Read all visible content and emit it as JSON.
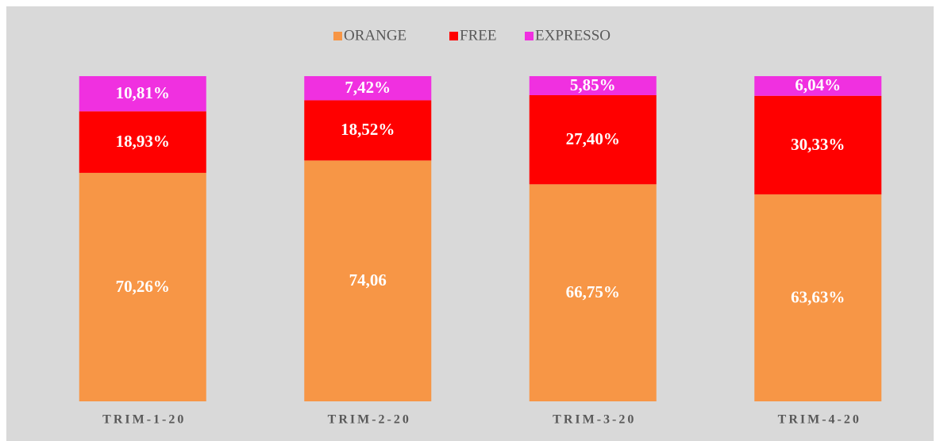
{
  "chart_data": {
    "type": "stacked_bar",
    "categories": [
      "TRIM-1-20",
      "TRIM-2-20",
      "TRIM-3-20",
      "TRIM-4-20"
    ],
    "series": [
      {
        "name": "ORANGE",
        "color": "#f79646",
        "values": [
          70.26,
          74.06,
          66.75,
          63.63
        ],
        "value_labels": [
          "70,26%",
          "74,06",
          "66,75%",
          "63,63%"
        ]
      },
      {
        "name": "FREE",
        "color": "#ff0000",
        "values": [
          18.93,
          18.52,
          27.4,
          30.33
        ],
        "value_labels": [
          "18,93%",
          "18,52%",
          "27,40%",
          "30,33%"
        ]
      },
      {
        "name": "EXPRESSO",
        "color": "#f030e0",
        "values": [
          10.81,
          7.42,
          5.85,
          6.04
        ],
        "value_labels": [
          "10,81%",
          "7,42%",
          "5,85%",
          "6,04%"
        ]
      }
    ],
    "ylim": [
      0,
      100
    ],
    "legend": "top"
  }
}
